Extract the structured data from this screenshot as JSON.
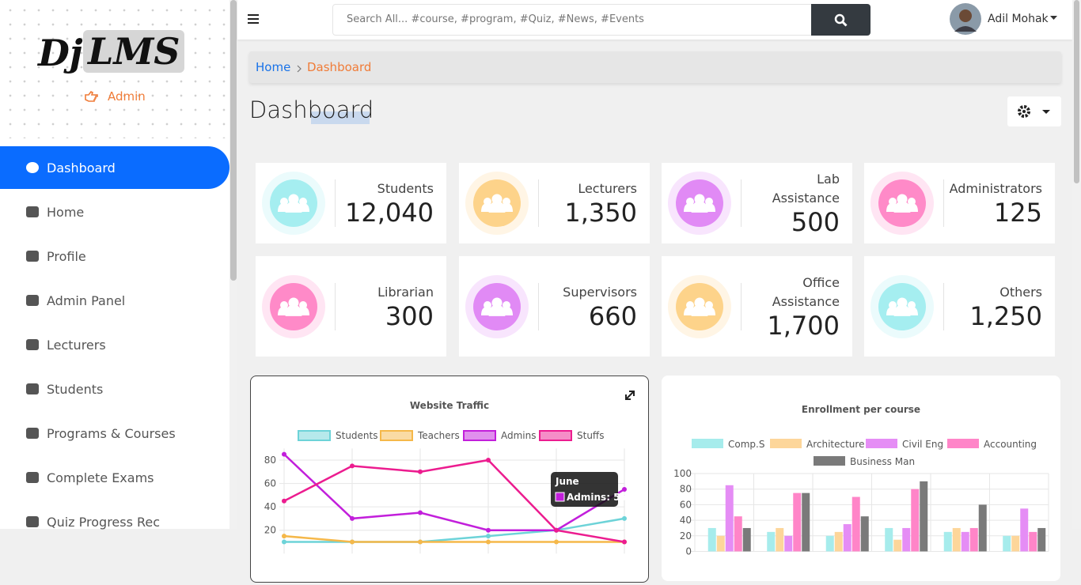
{
  "sidebar": {
    "logo": [
      "Dj",
      "LMS"
    ],
    "role": "Admin",
    "nav": [
      "Dashboard",
      "Home",
      "Profile",
      "Admin Panel",
      "Lecturers",
      "Students",
      "Programs & Courses",
      "Complete Exams",
      "Quiz Progress Rec"
    ]
  },
  "topbar": {
    "search_placeholder": "Search All... #course, #program, #Quiz, #News, #Events",
    "user": "Adil Mohak"
  },
  "breadcrumb": [
    "Home",
    "Dashboard"
  ],
  "page_title": "Dashboard",
  "stats": [
    {
      "label": "Students",
      "value": "12,040",
      "color": "#a5eef0"
    },
    {
      "label": "Lecturers",
      "value": "1,350",
      "color": "#fdd38a"
    },
    {
      "label": "Lab Assistance",
      "value": "500",
      "color": "#e18af5"
    },
    {
      "label": "Administrators",
      "value": "125",
      "color": "#ff8ac8"
    },
    {
      "label": "Librarian",
      "value": "300",
      "color": "#ff8ac8"
    },
    {
      "label": "Supervisors",
      "value": "660",
      "color": "#e18af5"
    },
    {
      "label": "Office Assistance",
      "value": "1,700",
      "color": "#fdd38a"
    },
    {
      "label": "Others",
      "value": "1,250",
      "color": "#a5eef0"
    }
  ],
  "chart_data": [
    {
      "type": "line",
      "title": "Website Traffic",
      "categories": [
        null,
        null,
        null,
        null,
        null,
        "June"
      ],
      "series": [
        {
          "name": "Students",
          "color": "#6dd3d8",
          "values": [
            10,
            10,
            10,
            15,
            20,
            30
          ]
        },
        {
          "name": "Teachers",
          "color": "#f5b84a",
          "values": [
            15,
            10,
            10,
            10,
            10,
            10
          ]
        },
        {
          "name": "Admins",
          "color": "#c21fdb",
          "values": [
            85,
            30,
            35,
            20,
            20,
            55
          ]
        },
        {
          "name": "Stuffs",
          "color": "#ec1c8f",
          "values": [
            45,
            75,
            70,
            80,
            20,
            10
          ]
        }
      ],
      "ylim": [
        0,
        90
      ],
      "yticks": [
        20,
        40,
        60,
        80
      ],
      "grid": true
    },
    {
      "type": "bar",
      "title": "Enrollment per course",
      "categories": [
        null,
        null,
        null,
        null,
        null,
        null
      ],
      "series": [
        {
          "name": "Comp.S",
          "color": "#a6ecec",
          "values": [
            30,
            25,
            20,
            30,
            25,
            20
          ]
        },
        {
          "name": "Architecture",
          "color": "#fdd69a",
          "values": [
            20,
            30,
            25,
            15,
            30,
            20
          ]
        },
        {
          "name": "Civil Eng",
          "color": "#e58df5",
          "values": [
            85,
            20,
            35,
            30,
            25,
            55
          ]
        },
        {
          "name": "Accounting",
          "color": "#ff85c8",
          "values": [
            45,
            75,
            70,
            80,
            30,
            25
          ]
        },
        {
          "name": "Business Man",
          "color": "#7a7a7a",
          "values": [
            30,
            75,
            45,
            90,
            60,
            30
          ]
        }
      ],
      "ylim": [
        0,
        100
      ],
      "yticks": [
        0,
        20,
        40,
        60,
        80,
        100
      ],
      "grid": true
    }
  ]
}
